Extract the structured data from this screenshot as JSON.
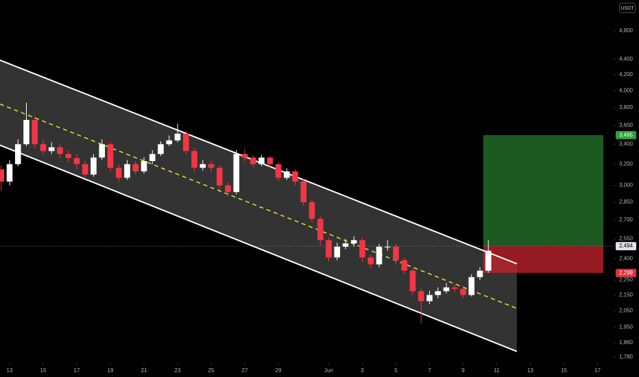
{
  "chart_data": {
    "type": "candlestick",
    "currency": "USDT",
    "log_scale": true,
    "x": [
      -0.5,
      0,
      0.5,
      1,
      1.5,
      2,
      2.5,
      3,
      3.5,
      4,
      4.5,
      5,
      5.5,
      6,
      6.5,
      7,
      7.5,
      8,
      8.5,
      9,
      9.5,
      10,
      10.5,
      11,
      11.5,
      12,
      12.5,
      13,
      13.5,
      14,
      14.5,
      15,
      15.5,
      16,
      16.5,
      17,
      17.5,
      18,
      18.5,
      19,
      19.5,
      20,
      20.5,
      21,
      21.5,
      22,
      22.5,
      23,
      23.5,
      24,
      24.5,
      25,
      25.5,
      26,
      26.5,
      27,
      27.5,
      28,
      28.5
    ],
    "open": [
      3150,
      3035,
      3200,
      3400,
      3660,
      3400,
      3330,
      3368,
      3300,
      3260,
      3200,
      3100,
      3265,
      3400,
      3165,
      3070,
      3200,
      3130,
      3230,
      3300,
      3400,
      3440,
      3510,
      3330,
      3165,
      3200,
      3165,
      3000,
      2940,
      3300,
      3265,
      3200,
      3265,
      3200,
      3070,
      3130,
      3035,
      2850,
      2710,
      2540,
      2410,
      2490,
      2515,
      2540,
      2410,
      2360,
      2490,
      2490,
      2390,
      2315,
      2175,
      2110,
      2150,
      2175,
      2200,
      2190,
      2150,
      2270,
      2315
    ],
    "high": [
      3190,
      3240,
      3450,
      3857,
      3700,
      3450,
      3420,
      3400,
      3340,
      3300,
      3230,
      3300,
      3450,
      3420,
      3200,
      3240,
      3230,
      3270,
      3340,
      3430,
      3490,
      3620,
      3540,
      3360,
      3240,
      3230,
      3190,
      3030,
      3340,
      3350,
      3290,
      3290,
      3280,
      3220,
      3160,
      3150,
      3060,
      2870,
      2730,
      2560,
      2520,
      2550,
      2570,
      2560,
      2430,
      2510,
      2540,
      2510,
      2410,
      2330,
      2190,
      2180,
      2200,
      2230,
      2220,
      2210,
      2290,
      2340,
      2540
    ],
    "low": [
      2950,
      3000,
      3180,
      3380,
      3360,
      3290,
      3300,
      3260,
      3220,
      3150,
      3060,
      3080,
      3240,
      3130,
      3030,
      3050,
      3100,
      3110,
      3200,
      3280,
      3380,
      3420,
      3300,
      3130,
      3140,
      3120,
      2960,
      2900,
      2920,
      3230,
      3170,
      3180,
      3160,
      3040,
      3050,
      3000,
      2820,
      2680,
      2500,
      2380,
      2390,
      2470,
      2490,
      2380,
      2330,
      2340,
      2460,
      2360,
      2290,
      2150,
      1972,
      2090,
      2130,
      2160,
      2170,
      2130,
      2140,
      2250,
      2300
    ],
    "close": [
      3035,
      3200,
      3400,
      3660,
      3400,
      3330,
      3368,
      3300,
      3260,
      3200,
      3100,
      3265,
      3400,
      3165,
      3070,
      3200,
      3130,
      3230,
      3300,
      3400,
      3440,
      3510,
      3330,
      3165,
      3200,
      3165,
      3000,
      2940,
      3300,
      3265,
      3200,
      3265,
      3200,
      3070,
      3130,
      3035,
      2850,
      2710,
      2540,
      2410,
      2490,
      2515,
      2540,
      2410,
      2360,
      2490,
      2490,
      2390,
      2315,
      2175,
      2110,
      2150,
      2175,
      2200,
      2190,
      2150,
      2270,
      2315,
      2460
    ],
    "up_color": "#ffffff",
    "down_color": "#f23645",
    "xlim": [
      -0.571,
      35.96
    ],
    "xticks": [
      {
        "value": 0,
        "label": "13"
      },
      {
        "value": 2,
        "label": "15"
      },
      {
        "value": 4,
        "label": "17"
      },
      {
        "value": 6,
        "label": "19"
      },
      {
        "value": 8,
        "label": "21"
      },
      {
        "value": 10,
        "label": "23"
      },
      {
        "value": 12,
        "label": "25"
      },
      {
        "value": 14,
        "label": "27"
      },
      {
        "value": 16,
        "label": "29"
      },
      {
        "value": 19,
        "label": "Jun"
      },
      {
        "value": 21,
        "label": "3"
      },
      {
        "value": 23,
        "label": "5"
      },
      {
        "value": 25,
        "label": "7"
      },
      {
        "value": 27,
        "label": "9"
      },
      {
        "value": 29,
        "label": "11"
      },
      {
        "value": 31,
        "label": "13"
      },
      {
        "value": 33,
        "label": "15"
      },
      {
        "value": 35,
        "label": "17"
      }
    ],
    "ylim": [
      1747,
      5270
    ],
    "yticks": [
      {
        "value": 4800,
        "label": "4,800"
      },
      {
        "value": 4400,
        "label": "4,400"
      },
      {
        "value": 4200,
        "label": "4,200"
      },
      {
        "value": 4000,
        "label": "4,000"
      },
      {
        "value": 3800,
        "label": "3,800"
      },
      {
        "value": 3600,
        "label": "3,600"
      },
      {
        "value": 3400,
        "label": "3,400"
      },
      {
        "value": 3200,
        "label": "3,200"
      },
      {
        "value": 3000,
        "label": "3,000"
      },
      {
        "value": 2850,
        "label": "2,850"
      },
      {
        "value": 2700,
        "label": "2,700"
      },
      {
        "value": 2550,
        "label": "2,550"
      },
      {
        "value": 2400,
        "label": "2,400"
      },
      {
        "value": 2250,
        "label": "2,250"
      },
      {
        "value": 2150,
        "label": "2,150"
      },
      {
        "value": 2050,
        "label": "2,050"
      },
      {
        "value": 1950,
        "label": "1,950"
      },
      {
        "value": 1860,
        "label": "1,860"
      },
      {
        "value": 1780,
        "label": "1,780"
      }
    ],
    "channel": {
      "upper": {
        "x": [
          -0.571,
          30.2
        ],
        "y": [
          4389,
          2364
        ]
      },
      "middle": {
        "x": [
          -0.571,
          30.2
        ],
        "y": [
          3841,
          2064
        ]
      },
      "lower": {
        "x": [
          -0.571,
          30.2
        ],
        "y": [
          3390,
          1811
        ]
      }
    },
    "position": {
      "x": [
        28.2,
        35.35
      ],
      "target": 3495,
      "target_label": "3,495",
      "entry": 2494,
      "entry_label": "2,494",
      "stop": 2299,
      "stop_label": "2,299"
    }
  }
}
